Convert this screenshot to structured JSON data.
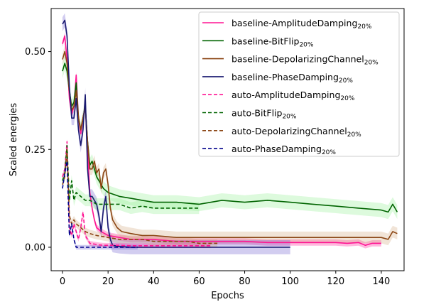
{
  "chart_data": {
    "type": "line",
    "xlabel": "Epochs",
    "ylabel": "Scaled energies",
    "xlim": [
      -5,
      150
    ],
    "ylim": [
      -0.06,
      0.61
    ],
    "xticks": [
      0,
      20,
      40,
      60,
      80,
      100,
      120,
      140
    ],
    "yticks": [
      0.0,
      0.25,
      0.5
    ],
    "xtick_labels": [
      "0",
      "20",
      "40",
      "60",
      "80",
      "100",
      "120",
      "140"
    ],
    "ytick_labels": [
      "0.00",
      "0.25",
      "0.50"
    ],
    "legend_position": "top-right",
    "grid": false,
    "series": [
      {
        "name": "baseline-AmplitudeDamping",
        "subscript": "20%",
        "color": "#ff1493",
        "style": "solid",
        "band_color": "#ff1493",
        "band_width": 0.008,
        "x": [
          0,
          1,
          2,
          3,
          4,
          5,
          6,
          7,
          8,
          9,
          10,
          11,
          12,
          13,
          14,
          15,
          17,
          20,
          25,
          30,
          40,
          50,
          60,
          70,
          80,
          90,
          100,
          110,
          120,
          125,
          130,
          133,
          136,
          140
        ],
        "y": [
          0.52,
          0.54,
          0.48,
          0.38,
          0.34,
          0.36,
          0.44,
          0.33,
          0.29,
          0.33,
          0.36,
          0.25,
          0.14,
          0.1,
          0.07,
          0.05,
          0.04,
          0.03,
          0.025,
          0.02,
          0.02,
          0.015,
          0.015,
          0.015,
          0.015,
          0.012,
          0.012,
          0.012,
          0.012,
          0.01,
          0.012,
          0.005,
          0.01,
          0.01
        ]
      },
      {
        "name": "baseline-BitFlip",
        "subscript": "20%",
        "color": "#006400",
        "style": "solid",
        "band_color": "#90ee90",
        "band_width": 0.018,
        "x": [
          0,
          1,
          2,
          3,
          4,
          5,
          6,
          7,
          8,
          9,
          10,
          11,
          12,
          13,
          14,
          15,
          16,
          18,
          20,
          25,
          30,
          35,
          40,
          50,
          60,
          70,
          80,
          90,
          100,
          110,
          120,
          130,
          140,
          143,
          145,
          147
        ],
        "y": [
          0.45,
          0.47,
          0.45,
          0.4,
          0.36,
          0.37,
          0.42,
          0.33,
          0.3,
          0.33,
          0.36,
          0.27,
          0.21,
          0.22,
          0.2,
          0.18,
          0.17,
          0.15,
          0.14,
          0.13,
          0.125,
          0.12,
          0.115,
          0.115,
          0.11,
          0.12,
          0.115,
          0.12,
          0.115,
          0.11,
          0.105,
          0.1,
          0.095,
          0.09,
          0.11,
          0.09
        ]
      },
      {
        "name": "baseline-DepolarizingChannel",
        "subscript": "20%",
        "color": "#8b4513",
        "style": "solid",
        "band_color": "#d2a679",
        "band_width": 0.015,
        "x": [
          0,
          1,
          2,
          3,
          4,
          5,
          6,
          7,
          8,
          9,
          10,
          11,
          12,
          13,
          14,
          15,
          16,
          17,
          18,
          19,
          20,
          21,
          22,
          24,
          26,
          30,
          35,
          40,
          50,
          60,
          70,
          80,
          90,
          100,
          110,
          120,
          130,
          140,
          143,
          145,
          147
        ],
        "y": [
          0.48,
          0.5,
          0.47,
          0.4,
          0.35,
          0.36,
          0.4,
          0.33,
          0.3,
          0.33,
          0.36,
          0.27,
          0.2,
          0.2,
          0.22,
          0.19,
          0.2,
          0.15,
          0.19,
          0.2,
          0.16,
          0.1,
          0.07,
          0.05,
          0.04,
          0.035,
          0.03,
          0.03,
          0.025,
          0.025,
          0.025,
          0.025,
          0.025,
          0.025,
          0.025,
          0.025,
          0.025,
          0.025,
          0.02,
          0.04,
          0.035
        ]
      },
      {
        "name": "baseline-PhaseDamping",
        "subscript": "20%",
        "color": "#191970",
        "style": "solid",
        "band_color": "#6a5acd",
        "band_width": 0.018,
        "x": [
          0,
          1,
          2,
          3,
          4,
          5,
          6,
          7,
          8,
          9,
          10,
          11,
          12,
          13,
          14,
          15,
          16,
          17,
          18,
          19,
          20,
          21,
          22,
          25,
          30,
          40,
          50,
          60,
          70,
          80,
          90,
          100
        ],
        "y": [
          0.57,
          0.58,
          0.54,
          0.41,
          0.33,
          0.33,
          0.38,
          0.3,
          0.26,
          0.3,
          0.39,
          0.2,
          0.13,
          0.13,
          0.12,
          0.11,
          0.08,
          0.04,
          0.1,
          0.13,
          0.05,
          0.02,
          0.005,
          0.002,
          0.0,
          0.0,
          0.0,
          0.0,
          0.0,
          0.0,
          0.0,
          0.0
        ]
      },
      {
        "name": "auto-AmplitudeDamping",
        "subscript": "20%",
        "color": "#ff1493",
        "style": "dashed",
        "band_color": "#ff1493",
        "band_width": 0.006,
        "x": [
          0,
          1,
          2,
          3,
          4,
          5,
          6,
          7,
          8,
          9,
          10,
          12,
          14,
          16,
          18,
          20,
          25,
          30,
          35,
          40,
          45,
          50,
          55,
          60,
          65
        ],
        "y": [
          0.18,
          0.2,
          0.27,
          0.05,
          0.03,
          0.06,
          0.04,
          0.02,
          0.05,
          0.09,
          0.03,
          0.01,
          0.008,
          0.006,
          0.005,
          0.005,
          0.005,
          0.004,
          0.004,
          0.004,
          0.004,
          0.004,
          0.004,
          0.004,
          0.004
        ]
      },
      {
        "name": "auto-BitFlip",
        "subscript": "20%",
        "color": "#006400",
        "style": "dashed",
        "band_color": "#90ee90",
        "band_width": 0.015,
        "x": [
          0,
          1,
          2,
          3,
          4,
          5,
          6,
          8,
          10,
          12,
          15,
          20,
          25,
          30,
          35,
          40,
          45,
          50,
          55,
          60
        ],
        "y": [
          0.17,
          0.19,
          0.26,
          0.12,
          0.17,
          0.12,
          0.14,
          0.13,
          0.12,
          0.12,
          0.11,
          0.11,
          0.11,
          0.1,
          0.105,
          0.1,
          0.1,
          0.1,
          0.1,
          0.1
        ]
      },
      {
        "name": "auto-DepolarizingChannel",
        "subscript": "20%",
        "color": "#8b4513",
        "style": "dashed",
        "band_color": "#d2a679",
        "band_width": 0.01,
        "x": [
          0,
          1,
          2,
          3,
          4,
          5,
          6,
          8,
          10,
          12,
          15,
          20,
          25,
          30,
          35,
          40,
          45,
          50,
          55,
          60,
          65,
          68
        ],
        "y": [
          0.16,
          0.18,
          0.25,
          0.08,
          0.06,
          0.07,
          0.06,
          0.05,
          0.04,
          0.035,
          0.03,
          0.025,
          0.02,
          0.02,
          0.02,
          0.015,
          0.015,
          0.015,
          0.015,
          0.01,
          0.01,
          0.01
        ]
      },
      {
        "name": "auto-PhaseDamping",
        "subscript": "20%",
        "color": "#00008b",
        "style": "dashed",
        "band_color": "#6a5acd",
        "band_width": 0.006,
        "x": [
          0,
          1,
          2,
          3,
          4,
          5,
          6,
          8,
          10,
          15,
          20,
          25,
          30,
          33
        ],
        "y": [
          0.15,
          0.19,
          0.22,
          0.03,
          0.06,
          0.02,
          0.0,
          0.0,
          0.0,
          0.0,
          0.0,
          0.0,
          0.0,
          0.0
        ]
      }
    ]
  }
}
